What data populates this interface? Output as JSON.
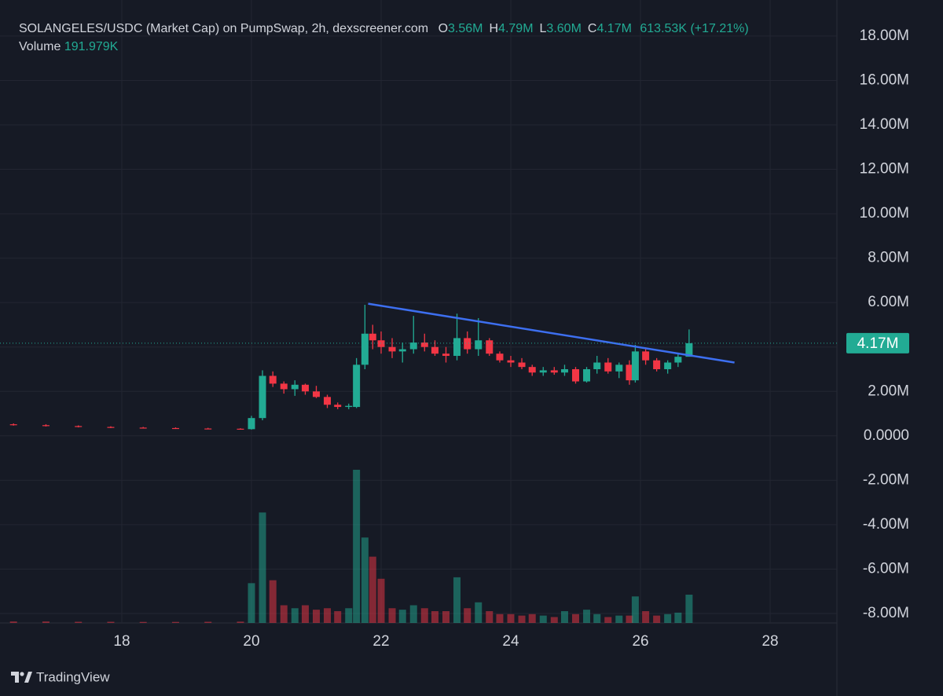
{
  "chart_data": {
    "type": "candlestick",
    "title": "SOLANGELES/USDC (Market Cap) on PumpSwap, 2h, dexscreener.com",
    "ohlc": [
      {
        "key": "O",
        "value": 3.56,
        "label": "3.56M"
      },
      {
        "key": "H",
        "value": 4.79,
        "label": "4.79M"
      },
      {
        "key": "L",
        "value": 3.6,
        "label": "3.60M"
      },
      {
        "key": "C",
        "value": 4.17,
        "label": "4.17M"
      }
    ],
    "change": {
      "value": 0.61353,
      "label": "613.53K"
    },
    "change_pct": {
      "value": 17.21,
      "label": "(+17.21%)"
    },
    "volume_label": "Volume",
    "volume_value": {
      "value": 0.191979,
      "label": "191.979K"
    },
    "last_price": {
      "value": 4.17,
      "label": "4.17M"
    },
    "up_color": "#22ab94",
    "down_color": "#f23645",
    "trend_color": "#3d6ff0",
    "grid": true,
    "x": [
      16.33,
      16.83,
      17.33,
      17.83,
      18.33,
      18.83,
      19.33,
      19.83,
      20.0,
      20.17,
      20.33,
      20.5,
      20.67,
      20.83,
      21.0,
      21.17,
      21.33,
      21.5,
      21.62,
      21.75,
      21.87,
      22.0,
      22.17,
      22.33,
      22.5,
      22.67,
      22.83,
      23.0,
      23.17,
      23.33,
      23.5,
      23.67,
      23.83,
      24.0,
      24.17,
      24.33,
      24.5,
      24.67,
      24.83,
      25.0,
      25.17,
      25.33,
      25.5,
      25.67,
      25.83,
      25.92,
      26.08,
      26.25,
      26.42,
      26.58,
      26.75
    ],
    "open": [
      0.52,
      0.48,
      0.44,
      0.4,
      0.37,
      0.35,
      0.33,
      0.32,
      0.3,
      0.8,
      2.7,
      2.35,
      2.1,
      2.3,
      2.0,
      1.75,
      1.4,
      1.3,
      1.3,
      3.2,
      4.6,
      4.3,
      4.0,
      3.8,
      3.9,
      4.2,
      4.0,
      3.7,
      3.6,
      4.4,
      3.9,
      4.3,
      3.7,
      3.4,
      3.3,
      3.1,
      2.85,
      2.95,
      2.85,
      3.0,
      2.45,
      3.0,
      3.3,
      2.9,
      3.2,
      2.5,
      3.8,
      3.4,
      3.0,
      3.3,
      3.56
    ],
    "high": [
      0.56,
      0.52,
      0.47,
      0.43,
      0.4,
      0.38,
      0.36,
      0.34,
      0.9,
      2.95,
      2.9,
      2.45,
      2.5,
      2.35,
      2.25,
      1.85,
      1.5,
      1.45,
      3.5,
      5.9,
      5.0,
      4.7,
      4.4,
      4.2,
      5.4,
      4.6,
      4.3,
      4.0,
      5.5,
      4.7,
      5.3,
      4.4,
      3.8,
      3.6,
      3.5,
      3.2,
      3.1,
      3.1,
      3.2,
      3.1,
      3.1,
      3.6,
      3.5,
      3.3,
      3.4,
      4.1,
      3.9,
      3.5,
      3.4,
      3.7,
      4.79
    ],
    "low": [
      0.46,
      0.42,
      0.38,
      0.35,
      0.33,
      0.31,
      0.3,
      0.28,
      0.28,
      0.7,
      2.2,
      1.9,
      1.8,
      1.85,
      1.7,
      1.25,
      1.2,
      1.2,
      1.25,
      3.0,
      3.9,
      3.7,
      3.5,
      3.3,
      3.7,
      3.8,
      3.6,
      3.3,
      3.4,
      3.7,
      3.6,
      3.6,
      3.3,
      3.1,
      3.0,
      2.7,
      2.7,
      2.75,
      2.7,
      2.35,
      2.4,
      2.8,
      2.8,
      2.6,
      2.3,
      2.4,
      3.2,
      2.9,
      2.8,
      3.1,
      3.6
    ],
    "close": [
      0.48,
      0.44,
      0.4,
      0.37,
      0.35,
      0.33,
      0.32,
      0.3,
      0.8,
      2.7,
      2.35,
      2.1,
      2.3,
      2.0,
      1.75,
      1.4,
      1.3,
      1.35,
      3.2,
      4.6,
      4.3,
      4.0,
      3.8,
      3.9,
      4.2,
      4.0,
      3.7,
      3.6,
      4.4,
      3.9,
      4.3,
      3.7,
      3.4,
      3.3,
      3.1,
      2.85,
      2.95,
      2.85,
      3.0,
      2.45,
      3.0,
      3.3,
      2.9,
      3.2,
      2.5,
      3.8,
      3.4,
      3.0,
      3.3,
      3.56,
      4.17
    ],
    "volume": [
      0.01,
      0.01,
      0.008,
      0.008,
      0.007,
      0.007,
      0.008,
      0.009,
      0.27,
      0.75,
      0.29,
      0.12,
      0.1,
      0.12,
      0.09,
      0.1,
      0.08,
      0.1,
      1.04,
      0.58,
      0.45,
      0.3,
      0.1,
      0.09,
      0.12,
      0.1,
      0.08,
      0.08,
      0.31,
      0.1,
      0.14,
      0.08,
      0.06,
      0.06,
      0.05,
      0.06,
      0.05,
      0.04,
      0.08,
      0.06,
      0.09,
      0.06,
      0.04,
      0.05,
      0.05,
      0.18,
      0.08,
      0.05,
      0.06,
      0.07,
      0.191979
    ],
    "trendline": {
      "x": [
        21.8,
        27.45
      ],
      "y": [
        5.95,
        3.3
      ]
    },
    "xlim": [
      16.267,
      29.03
    ],
    "xticks": [
      18,
      20,
      22,
      24,
      26,
      28
    ],
    "ylim": [
      -8.425,
      19.27
    ],
    "yticks": [
      {
        "value": 18,
        "label": "18.00M"
      },
      {
        "value": 16,
        "label": "16.00M"
      },
      {
        "value": 14,
        "label": "14.00M"
      },
      {
        "value": 12,
        "label": "12.00M"
      },
      {
        "value": 10,
        "label": "10.00M"
      },
      {
        "value": 8,
        "label": "8.00M"
      },
      {
        "value": 6,
        "label": "6.00M"
      },
      {
        "value": 4,
        "label": "4.00M"
      },
      {
        "value": 2,
        "label": "2.00M"
      },
      {
        "value": 0,
        "label": "0.0000"
      },
      {
        "value": -2,
        "label": "-2.00M"
      },
      {
        "value": -4,
        "label": "-4.00M"
      },
      {
        "value": -6,
        "label": "-6.00M"
      },
      {
        "value": -8,
        "label": "-8.00M"
      }
    ],
    "y2lim": [
      0,
      4.176
    ],
    "watermark": "TradingView"
  }
}
